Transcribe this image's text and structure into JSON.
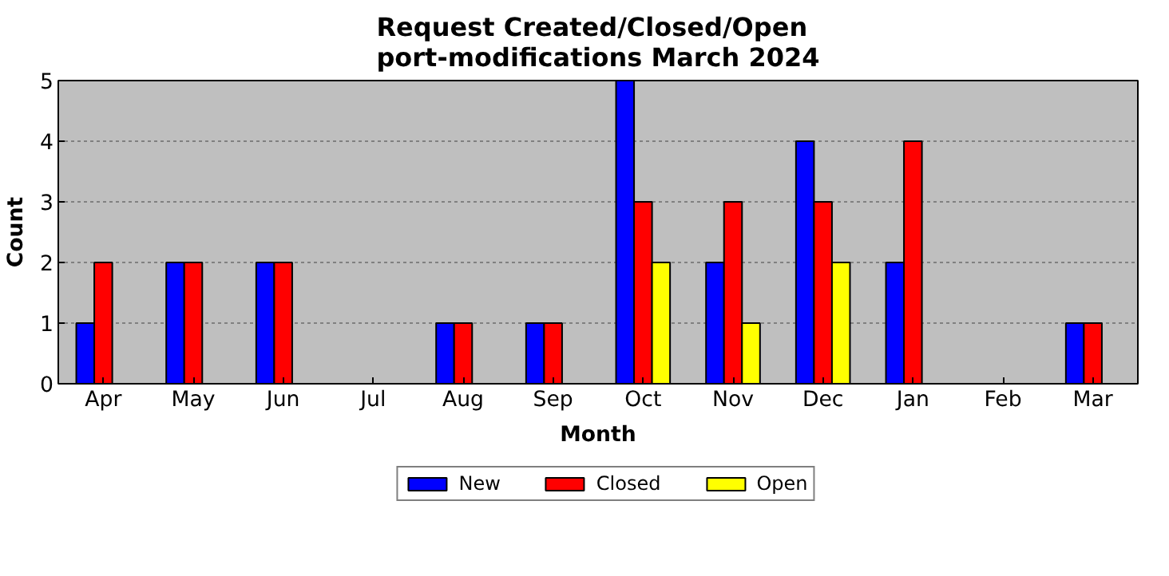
{
  "chart_data": {
    "type": "bar",
    "title": "Request Created/Closed/Open\nport-modifications March 2024",
    "xlabel": "Month",
    "ylabel": "Count",
    "categories": [
      "Apr",
      "May",
      "Jun",
      "Jul",
      "Aug",
      "Sep",
      "Oct",
      "Nov",
      "Dec",
      "Jan",
      "Feb",
      "Mar"
    ],
    "series": [
      {
        "name": "New",
        "color": "#0000ff",
        "values": [
          1,
          2,
          2,
          0,
          1,
          1,
          5,
          2,
          4,
          2,
          0,
          1
        ]
      },
      {
        "name": "Closed",
        "color": "#ff0000",
        "values": [
          2,
          2,
          2,
          0,
          1,
          1,
          3,
          3,
          3,
          4,
          0,
          1
        ]
      },
      {
        "name": "Open",
        "color": "#ffff00",
        "values": [
          0,
          0,
          0,
          0,
          0,
          0,
          2,
          1,
          2,
          0,
          0,
          0
        ]
      }
    ],
    "ylim": [
      0,
      5
    ],
    "yticks": [
      0,
      1,
      2,
      3,
      4,
      5
    ],
    "grid": "y",
    "legend": "bottom"
  }
}
